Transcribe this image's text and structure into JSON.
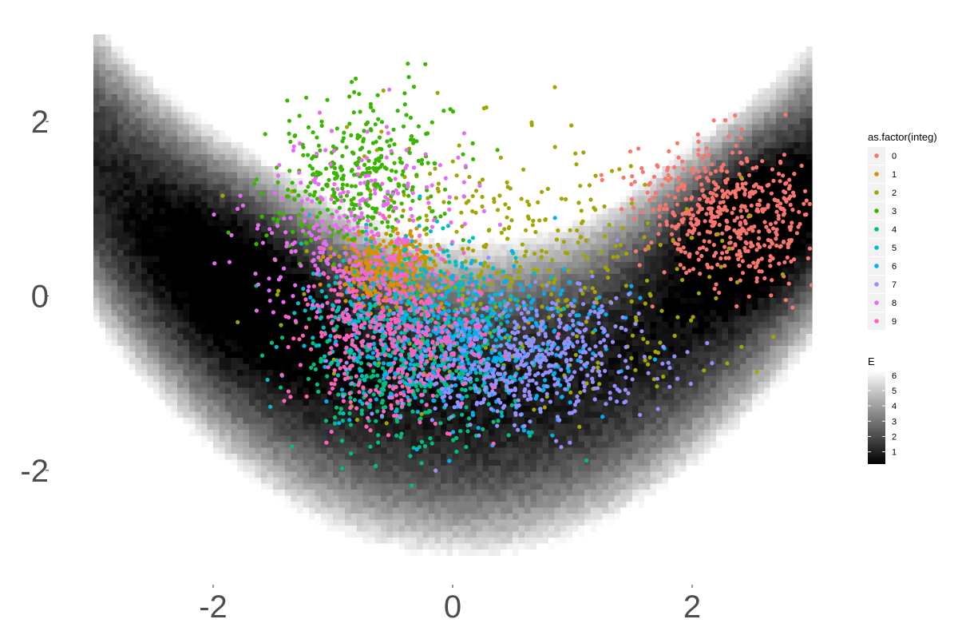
{
  "chart_data": {
    "type": "scatter",
    "background": {
      "type": "heatmap",
      "fill_name": "E",
      "description_values": "energy surface, dark low / white high",
      "x_range": [
        -3,
        3
      ],
      "y_range": [
        -3,
        3
      ],
      "colorbar": {
        "title": "E",
        "ticks": [
          1,
          2,
          3,
          4,
          5,
          6
        ],
        "range": [
          0.2,
          6.3
        ],
        "low_color": "#000000",
        "high_color": "#ffffff"
      }
    },
    "xlim": [
      -3,
      3
    ],
    "ylim": [
      -3,
      3
    ],
    "x_ticks": [
      -2,
      0,
      2
    ],
    "y_ticks": [
      -2,
      0,
      2
    ],
    "x_tick_labels": [
      "-2",
      "0",
      "2"
    ],
    "y_tick_labels": [
      "-2",
      "0",
      "2"
    ],
    "xlabel": "",
    "ylabel": "",
    "grid": false,
    "legend": {
      "title": "as.factor(integ)",
      "placement": "right",
      "labels": [
        "0",
        "1",
        "2",
        "3",
        "4",
        "5",
        "6",
        "7",
        "8",
        "9"
      ]
    },
    "series": [
      {
        "name": "0",
        "color": "#F8766D",
        "n": 520,
        "center": [
          2.3,
          0.95
        ],
        "sd": [
          0.38,
          0.42
        ],
        "rho": -0.2
      },
      {
        "name": "1",
        "color": "#D89000",
        "n": 420,
        "center": [
          -0.52,
          0.3
        ],
        "sd": [
          0.2,
          0.18
        ],
        "rho": 0.0
      },
      {
        "name": "2",
        "color": "#A3A500",
        "n": 420,
        "center": [
          0.5,
          0.35
        ],
        "sd": [
          0.85,
          0.7
        ],
        "rho": -0.1
      },
      {
        "name": "3",
        "color": "#39B600",
        "n": 360,
        "center": [
          -0.8,
          1.35
        ],
        "sd": [
          0.38,
          0.45
        ],
        "rho": 0.2
      },
      {
        "name": "4",
        "color": "#00BF7D",
        "n": 400,
        "center": [
          -0.3,
          -0.85
        ],
        "sd": [
          0.45,
          0.45
        ],
        "rho": 0.1
      },
      {
        "name": "5",
        "color": "#00BFC4",
        "n": 380,
        "center": [
          -0.35,
          -0.2
        ],
        "sd": [
          0.45,
          0.45
        ],
        "rho": 0.0
      },
      {
        "name": "6",
        "color": "#00B0F6",
        "n": 420,
        "center": [
          0.15,
          -0.55
        ],
        "sd": [
          0.55,
          0.45
        ],
        "rho": 0.1
      },
      {
        "name": "7",
        "color": "#9590FF",
        "n": 520,
        "center": [
          0.55,
          -0.75
        ],
        "sd": [
          0.55,
          0.38
        ],
        "rho": 0.1
      },
      {
        "name": "8",
        "color": "#E76BF3",
        "n": 300,
        "center": [
          -0.85,
          0.7
        ],
        "sd": [
          0.45,
          0.5
        ],
        "rho": 0.2
      },
      {
        "name": "9",
        "color": "#FF62BC",
        "n": 420,
        "center": [
          -0.5,
          -0.45
        ],
        "sd": [
          0.38,
          0.45
        ],
        "rho": 0.0
      }
    ]
  }
}
